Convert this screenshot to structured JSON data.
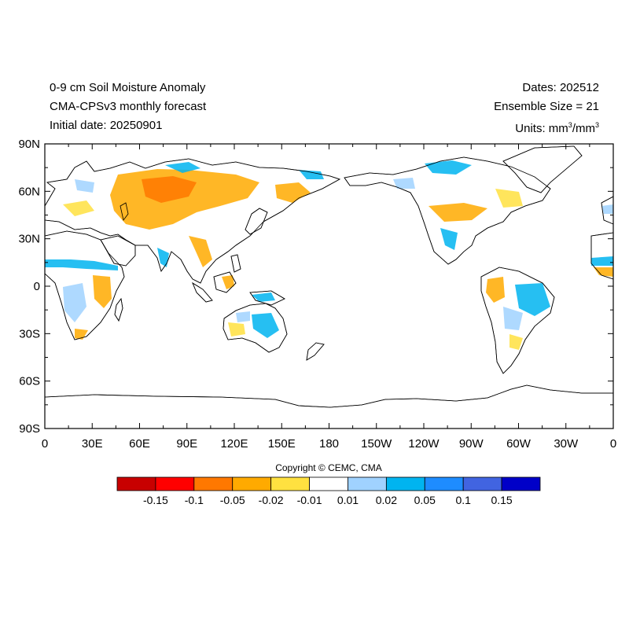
{
  "header": {
    "left_lines": [
      "0-9 cm Soil Moisture Anomaly",
      "CMA-CPSv3 monthly forecast",
      "Initial date: 20250901"
    ],
    "right_dates": "Dates: 202512",
    "right_ensemble": "Ensemble Size = 21",
    "units_prefix": "Units: mm",
    "units_sup1": "3",
    "units_mid": "/mm",
    "units_sup2": "3"
  },
  "map": {
    "lat_labels": [
      "90N",
      "60N",
      "30N",
      "0",
      "30S",
      "60S",
      "90S"
    ],
    "lon_labels": [
      "0",
      "30E",
      "60E",
      "90E",
      "120E",
      "150E",
      "180",
      "150W",
      "120W",
      "90W",
      "60W",
      "30W",
      "0"
    ],
    "lat_values": [
      90,
      60,
      30,
      0,
      -30,
      -60,
      -90
    ],
    "lon_values": [
      0,
      30,
      60,
      90,
      120,
      150,
      180,
      210,
      240,
      270,
      300,
      330,
      360
    ]
  },
  "copyright": "Copyright © CEMC, CMA",
  "colorbar": {
    "colors": [
      "#c80000",
      "#ff0000",
      "#ff7800",
      "#ffaa00",
      "#ffe140",
      "#ffffff",
      "#a0d2ff",
      "#00b4f0",
      "#1e8cff",
      "#4164e1",
      "#0000c8"
    ],
    "labels": [
      "-0.15",
      "-0.1",
      "-0.05",
      "-0.02",
      "-0.01",
      "0.01",
      "0.02",
      "0.05",
      "0.1",
      "0.15"
    ]
  },
  "anomaly_colors": {
    "dry_strong": "#ff7800",
    "dry": "#ffaa00",
    "dry_light": "#ffe140",
    "wet_light": "#a0d2ff",
    "wet": "#00b4f0",
    "wet_strong": "#1e8cff"
  }
}
